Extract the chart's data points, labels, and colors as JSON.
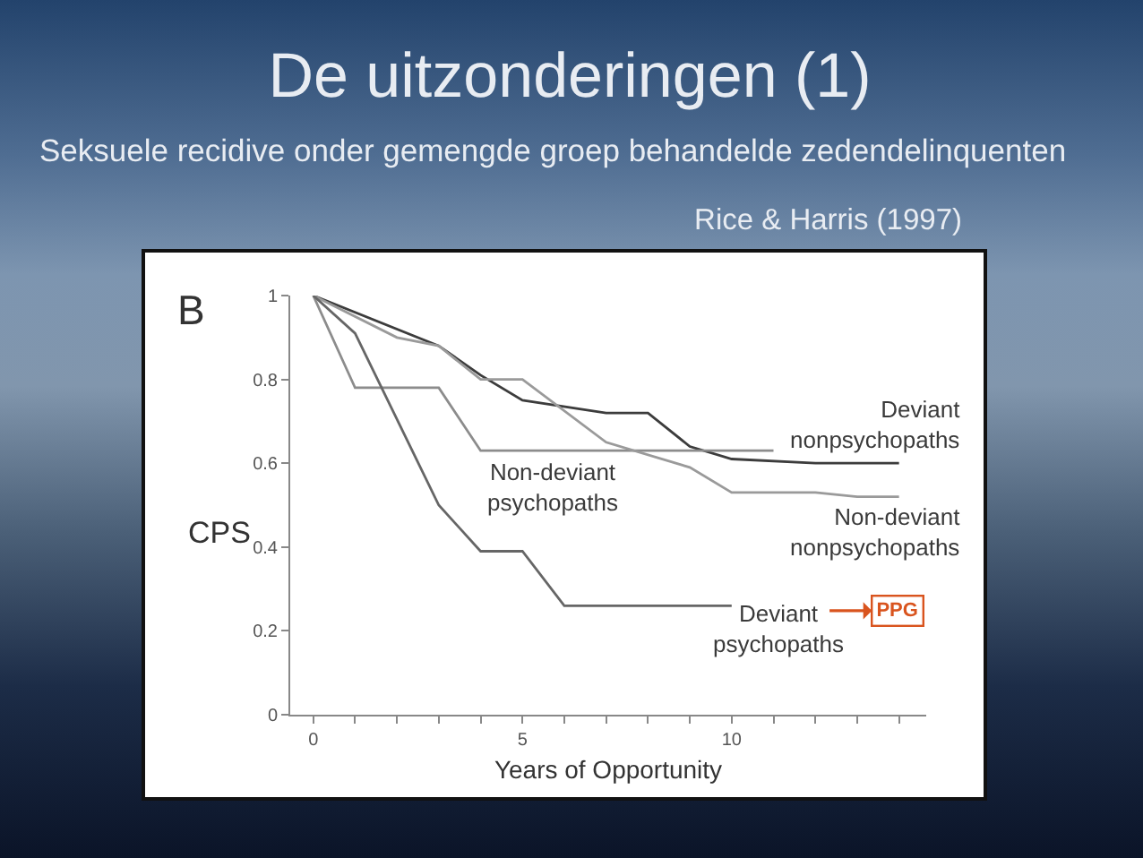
{
  "chart_data": {
    "type": "line",
    "title": "De uitzonderingen (1)",
    "subtitle": "Seksuele recidive onder gemengde groep behandelde zedendelinquenten",
    "xlabel": "Years of Opportunity",
    "ylabel": "CPS",
    "annotations": [
      "Rice & Harris (1997)",
      "B",
      "PPG"
    ],
    "series": [
      {
        "name": "Deviant nonpsychopaths",
        "color": "#3c3c3c",
        "x": [
          0,
          3,
          4,
          5,
          7,
          8,
          9,
          10,
          12,
          14
        ],
        "values": [
          1,
          0.88,
          0.81,
          0.75,
          0.72,
          0.72,
          0.64,
          0.61,
          0.6,
          0.6
        ]
      },
      {
        "name": "Non-deviant psychopaths",
        "color": "#8c8c8c",
        "x": [
          0,
          1,
          3,
          4,
          11
        ],
        "values": [
          1,
          0.78,
          0.78,
          0.63,
          0.63
        ]
      },
      {
        "name": "Non-deviant nonpsychopaths",
        "color": "#9a9a9a",
        "x": [
          0,
          2,
          3,
          4,
          5,
          7,
          9,
          10,
          12,
          13,
          14
        ],
        "values": [
          1,
          0.9,
          0.88,
          0.8,
          0.8,
          0.65,
          0.59,
          0.53,
          0.53,
          0.52,
          0.52
        ]
      },
      {
        "name": "Deviant psychopaths",
        "color": "#666666",
        "x": [
          0,
          1,
          3,
          4,
          5,
          6,
          10
        ],
        "values": [
          1,
          0.91,
          0.5,
          0.39,
          0.39,
          0.26,
          0.26
        ]
      }
    ],
    "xlim": [
      -0.55,
      14.65
    ],
    "xticks": [
      0,
      {
        "value": 1,
        "label": null
      },
      {
        "value": 2,
        "label": null
      },
      {
        "value": 3,
        "label": null
      },
      {
        "value": 4,
        "label": null
      },
      5,
      {
        "value": 6,
        "label": null
      },
      {
        "value": 7,
        "label": null
      },
      {
        "value": 8,
        "label": null
      },
      {
        "value": 9,
        "label": null
      },
      10,
      {
        "value": 11,
        "label": null
      },
      {
        "value": 12,
        "label": null
      },
      {
        "value": 13,
        "label": null
      },
      {
        "value": 14,
        "label": null
      }
    ],
    "ylim": [
      0,
      1
    ],
    "yticks": [
      0,
      0.2,
      0.4,
      0.6,
      0.8,
      1
    ],
    "marker": "none",
    "line_style": "solid"
  }
}
